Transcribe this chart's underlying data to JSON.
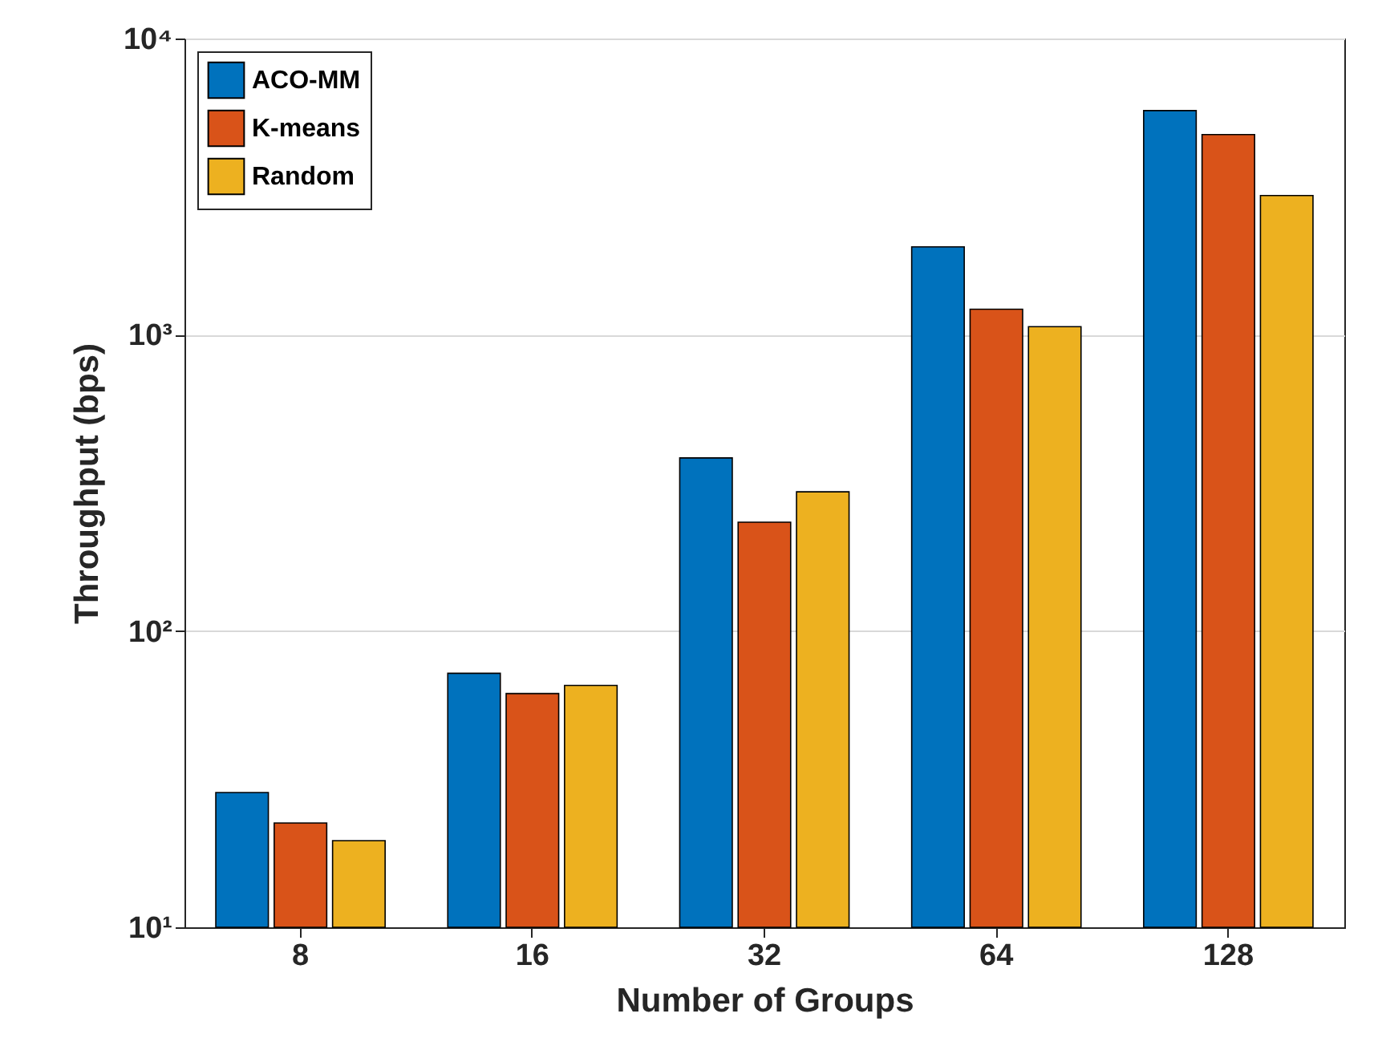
{
  "chart_data": {
    "type": "bar",
    "xlabel": "Number of Groups",
    "ylabel": "Throughput (bps)",
    "categories": [
      "8",
      "16",
      "32",
      "64",
      "128"
    ],
    "series": [
      {
        "name": "ACO-MM",
        "color": "#0072bd",
        "values": [
          28.5,
          72,
          384,
          1980,
          5710
        ]
      },
      {
        "name": "K-means",
        "color": "#d95319",
        "values": [
          22.5,
          61.5,
          233,
          1220,
          4740
        ]
      },
      {
        "name": "Random",
        "color": "#edb120",
        "values": [
          19.6,
          65.5,
          295,
          1065,
          2950
        ]
      }
    ],
    "log": true,
    "ylim": [
      10,
      10000
    ],
    "yticks": [
      {
        "value": 10,
        "label": "10¹"
      },
      {
        "value": 100,
        "label": "10²"
      },
      {
        "value": 1000,
        "label": "10³"
      },
      {
        "value": 10000,
        "label": "10⁴"
      }
    ],
    "grid": "y",
    "legend": "top left"
  }
}
